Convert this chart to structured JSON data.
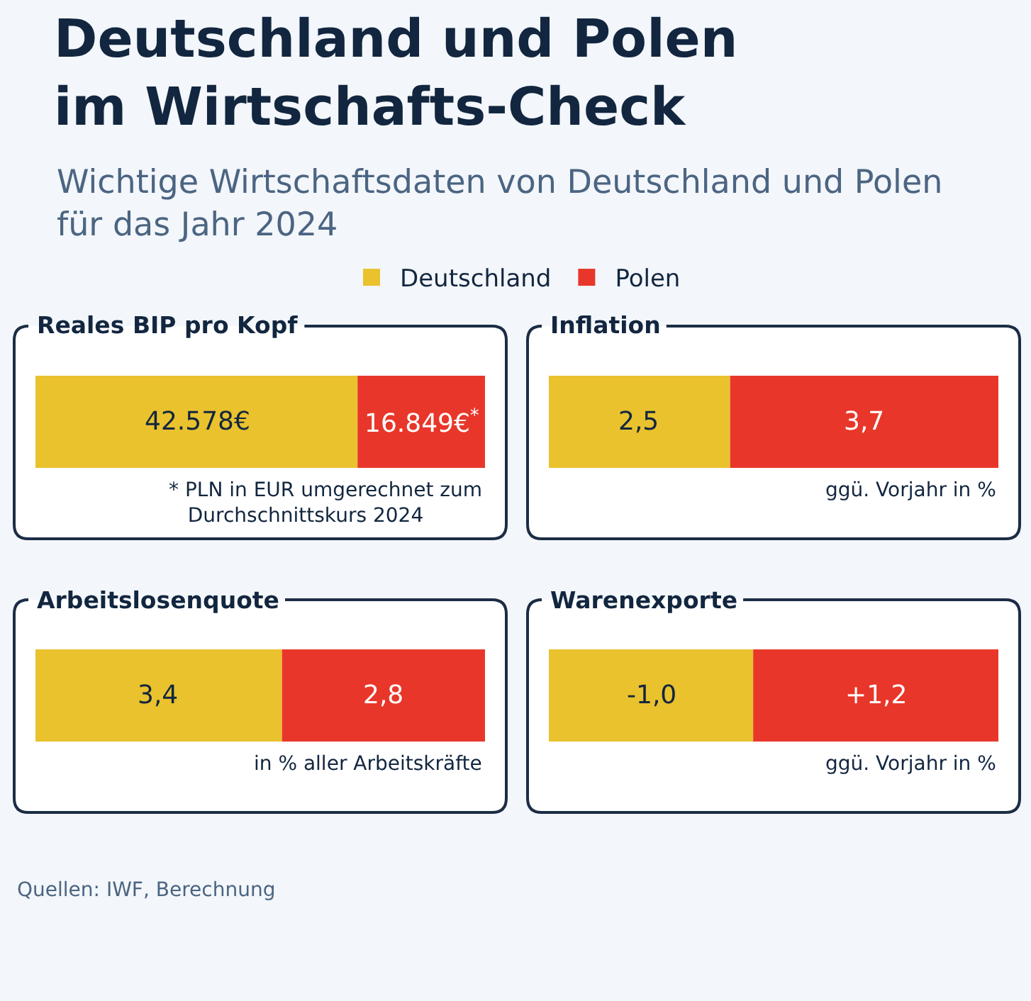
{
  "chart_data": [
    {
      "type": "other",
      "title": "Deutschland und Polen im Wirtschafts-Check",
      "subtitle": "Wichtige Wirtschaftsdaten von Deutschland und Polen für das Jahr 2024",
      "annotations": [
        "Quellen: IWF, Berechnung"
      ]
    },
    {
      "type": "bar",
      "title": "Reales BIP pro Kopf",
      "orientation": "horizontal",
      "stacked": true,
      "legend": "top",
      "categories": [
        null
      ],
      "series": [
        {
          "name": "Deutschland",
          "color": "#e9c22d",
          "values": [
            42578
          ],
          "value_labels": [
            "42.578€"
          ]
        },
        {
          "name": "Polen",
          "color": "#e8372a",
          "values": [
            16849
          ],
          "value_labels": [
            "16.849€$^{*}$"
          ]
        }
      ],
      "annotations": [
        "* PLN in EUR umgerechnet zum Durchschnittskurs 2024"
      ]
    },
    {
      "type": "bar",
      "title": "Inflation",
      "orientation": "horizontal",
      "stacked": true,
      "categories": [
        null
      ],
      "series": [
        {
          "name": "Deutschland",
          "color": "#e9c22d",
          "values": [
            2.5
          ],
          "value_labels": [
            "2,5"
          ]
        },
        {
          "name": "Polen",
          "color": "#e8372a",
          "values": [
            3.7
          ],
          "value_labels": [
            "3,7"
          ]
        }
      ],
      "annotations": [
        "ggü. Vorjahr in %"
      ]
    },
    {
      "type": "bar",
      "title": "Arbeitslosenquote",
      "orientation": "horizontal",
      "stacked": true,
      "categories": [
        null
      ],
      "series": [
        {
          "name": "Deutschland",
          "color": "#e9c22d",
          "values": [
            3.4
          ],
          "value_labels": [
            "3,4"
          ]
        },
        {
          "name": "Polen",
          "color": "#e8372a",
          "values": [
            2.8
          ],
          "value_labels": [
            "2,8"
          ]
        }
      ],
      "annotations": [
        "in % aller Arbeitskräfte"
      ]
    },
    {
      "type": "bar",
      "title": "Warenexporte",
      "orientation": "horizontal",
      "stacked": true,
      "categories": [
        null
      ],
      "series": [
        {
          "name": "Deutschland",
          "color": "#e9c22d",
          "values": [
            -1.0
          ],
          "value_labels": [
            "-1,0"
          ]
        },
        {
          "name": "Polen",
          "color": "#e8372a",
          "values": [
            1.2
          ],
          "value_labels": [
            "+1,2"
          ]
        }
      ],
      "annotations": [
        "ggü. Vorjahr in %"
      ]
    }
  ]
}
